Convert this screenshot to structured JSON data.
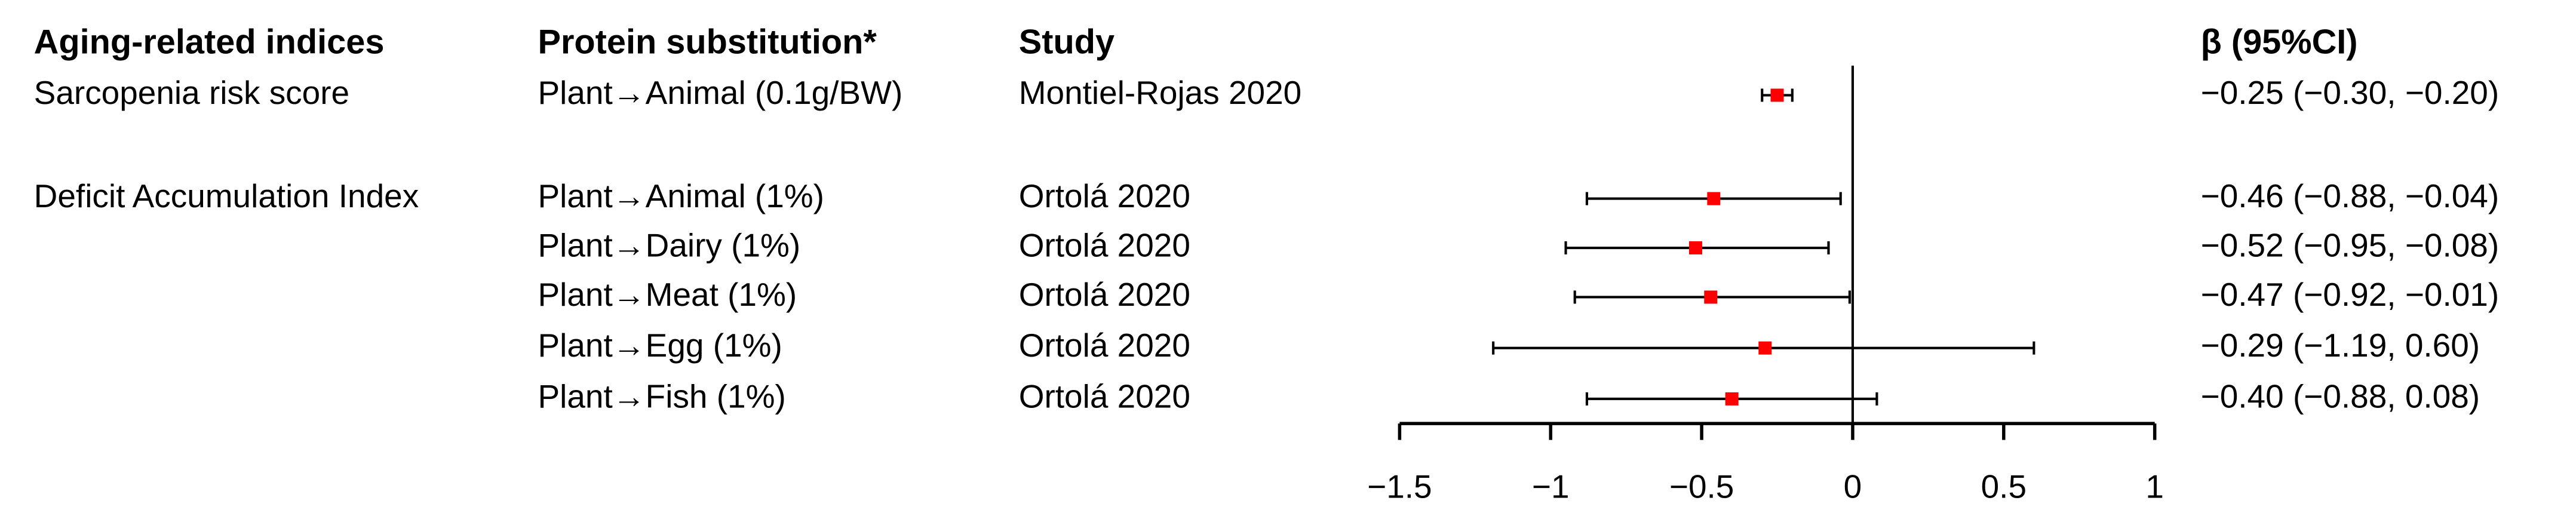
{
  "chart_data": {
    "type": "forest",
    "headers": [
      "Aging-related indices",
      "Protein substitution*",
      "Study",
      "β (95%CI)"
    ],
    "groups": [
      "Sarcopenia risk score",
      "Deficit Accumulation Index",
      null,
      null,
      null,
      null
    ],
    "categories": [
      "Plant→Animal (0.1g/BW)",
      "Plant→Animal (1%)",
      "Plant→Dairy (1%)",
      "Plant→Meat (1%)",
      "Plant→Egg (1%)",
      "Plant→Fish (1%)"
    ],
    "studies": [
      "Montiel-Rojas 2020",
      "Ortolá 2020",
      "Ortolá 2020",
      "Ortolá 2020",
      "Ortolá 2020",
      "Ortolá 2020"
    ],
    "values": [
      -0.25,
      -0.46,
      -0.52,
      -0.47,
      -0.29,
      -0.4
    ],
    "lower": [
      -0.3,
      -0.88,
      -0.95,
      -0.92,
      -1.19,
      -0.88
    ],
    "upper": [
      -0.2,
      -0.04,
      -0.08,
      -0.01,
      0.6,
      0.08
    ],
    "value_labels": [
      "−0.25 (−0.30, −0.20)",
      "−0.46 (−0.88, −0.04)",
      "−0.52 (−0.95, −0.08)",
      "−0.47 (−0.92, −0.01)",
      "−0.29 (−1.19, 0.60)",
      "−0.40 (−0.88, 0.08)"
    ],
    "color": "#ff0000",
    "xlim": [
      -1.5,
      1
    ],
    "xticks": [
      {
        "value": -1.5,
        "label": "−1.5"
      },
      {
        "value": -1,
        "label": "−1"
      },
      {
        "value": -0.5,
        "label": "−0.5"
      },
      0,
      0.5,
      1
    ]
  }
}
